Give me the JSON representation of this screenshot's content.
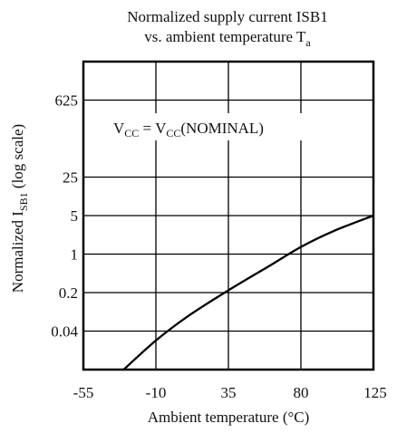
{
  "chart_data": {
    "type": "line",
    "title_line1": "Normalized supply current ISB1",
    "title_line2_prefix": "vs. ambient temperature T",
    "title_line2_sub": "a",
    "xlabel": "Ambient temperature (°C)",
    "ylabel_prefix": "Normalized I",
    "ylabel_sub": "SB1",
    "ylabel_suffix": " (log scale)",
    "annotation": {
      "v1": "V",
      "s1": "CC",
      "eq": " = V",
      "s2": "CC",
      "tail": "(NOMINAL)"
    },
    "x_ticks": [
      "-55",
      "-10",
      "35",
      "80",
      "125"
    ],
    "x_tick_values": [
      -55,
      -10,
      35,
      80,
      125
    ],
    "y_ticks": [
      "625",
      "25",
      "5",
      "1",
      "0.2",
      "0.04"
    ],
    "y_tick_values": [
      625,
      25,
      5,
      1,
      0.2,
      0.04
    ],
    "xlim": [
      -55,
      125
    ],
    "ylim": [
      0.008,
      3125
    ],
    "y_scale": "log",
    "grid": true,
    "series": [
      {
        "x": [
          -30,
          -10,
          10,
          35,
          60,
          80,
          100,
          125
        ],
        "y": [
          0.008,
          0.027,
          0.075,
          0.22,
          0.6,
          1.35,
          2.6,
          5.0
        ]
      }
    ]
  }
}
